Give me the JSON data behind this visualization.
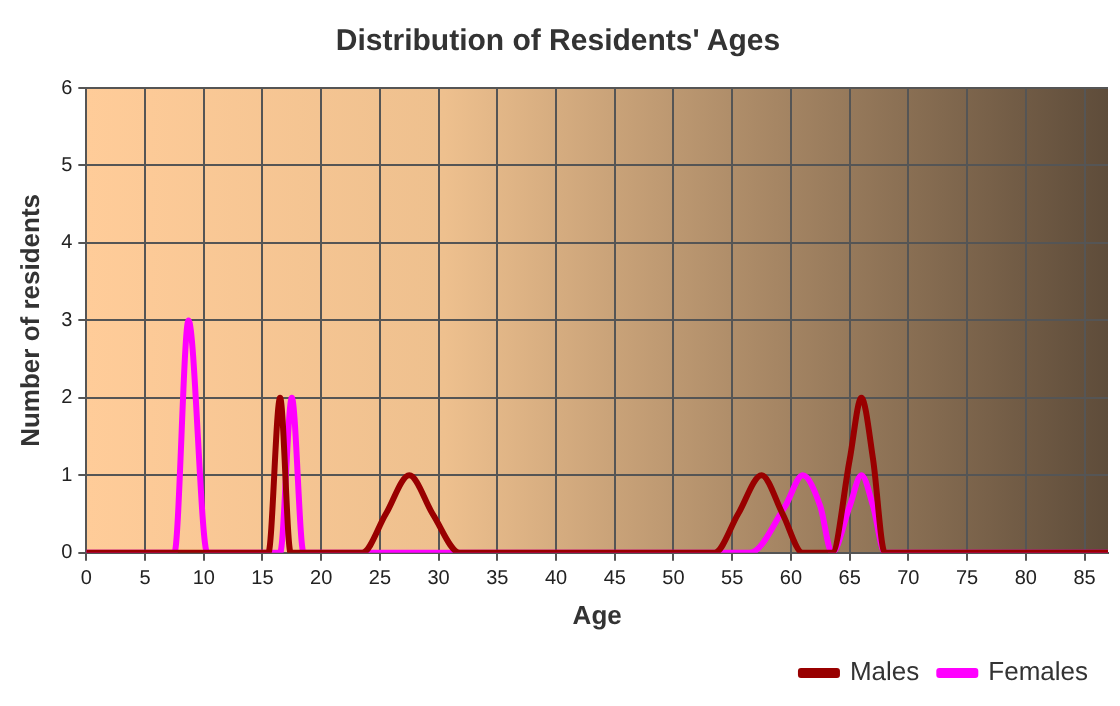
{
  "chart_data": {
    "type": "line",
    "title": "Distribution of Residents' Ages",
    "xlabel": "Age",
    "ylabel": "Number of residents",
    "xlim": [
      0,
      87
    ],
    "xticks": [
      0,
      5,
      10,
      15,
      20,
      25,
      30,
      35,
      40,
      45,
      50,
      55,
      60,
      65,
      70,
      75,
      80,
      85
    ],
    "ylim": [
      0,
      6
    ],
    "yticks": [
      0,
      1,
      2,
      3,
      4,
      5,
      6
    ],
    "grid": true,
    "legend": "bottom right",
    "marker": "none",
    "line_style": "solid",
    "series": [
      {
        "name": "Males",
        "color": "#990000",
        "x": [
          0,
          15.5,
          16.5,
          17.4,
          23.5,
          25.5,
          27.5,
          29.5,
          31.8,
          53.5,
          55.5,
          57.5,
          59.3,
          61,
          63.5,
          65,
          66,
          67,
          68,
          87
        ],
        "values": [
          0,
          0,
          2,
          0,
          0,
          0.5,
          1,
          0.5,
          0,
          0,
          0.5,
          1,
          0.5,
          0,
          0,
          1.2,
          2,
          1.2,
          0,
          0
        ]
      },
      {
        "name": "Females",
        "color": "#ff00ff",
        "x": [
          0,
          7.5,
          8.7,
          10.3,
          16.5,
          17.5,
          18.5,
          56.5,
          59.5,
          61,
          62.5,
          63.5,
          65,
          66,
          67,
          68,
          87
        ],
        "values": [
          0,
          0,
          3,
          0,
          0,
          2,
          0,
          0,
          0.6,
          1,
          0.6,
          0,
          0.6,
          1,
          0.6,
          0,
          0
        ]
      }
    ]
  }
}
